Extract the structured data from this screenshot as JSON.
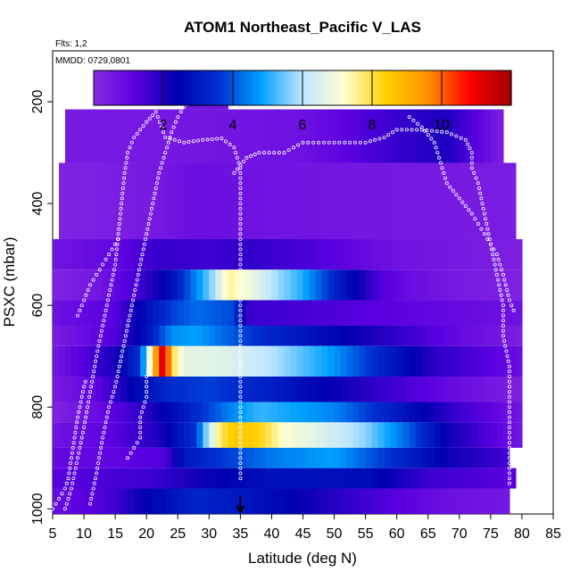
{
  "chart_data": {
    "type": "heatmap",
    "title": "ATOM1 Northeast_Pacific V_LAS",
    "flights_label": "Flts: 1,2",
    "date_label": "MMDD: 0729,0801",
    "xlabel": "Latitude (deg N)",
    "ylabel": "PSXC (mbar)",
    "xlim": [
      5,
      85
    ],
    "ylim": [
      1010,
      100
    ],
    "y_reversed": true,
    "x_ticks": [
      5,
      10,
      15,
      20,
      25,
      30,
      35,
      40,
      45,
      50,
      55,
      60,
      65,
      70,
      75,
      80,
      85
    ],
    "y_ticks": [
      200,
      400,
      600,
      800,
      1000
    ],
    "colorbar": {
      "range": [
        0,
        12
      ],
      "ticks": [
        2,
        4,
        6,
        8,
        10
      ],
      "colors": [
        "#8a2be2",
        "#5a00e0",
        "#0000b0",
        "#0030d0",
        "#00a0ff",
        "#bfe6ff",
        "#ffffd0",
        "#ffd000",
        "#ff9000",
        "#ff0000",
        "#a00000"
      ]
    },
    "marker_latitude": 35,
    "layers": [
      {
        "p_top": 165,
        "p_bot": 215,
        "x_start": 26,
        "x_end": 33,
        "anchors": [
          [
            26,
            0.5
          ],
          [
            33,
            0.5
          ]
        ]
      },
      {
        "p_top": 215,
        "p_bot": 320,
        "x_start": 7,
        "x_end": 77,
        "anchors": [
          [
            7,
            0.4
          ],
          [
            20,
            0.5
          ],
          [
            30,
            0.6
          ],
          [
            45,
            0.8
          ],
          [
            60,
            1.8
          ],
          [
            68,
            2.2
          ],
          [
            72,
            1.5
          ],
          [
            77,
            0.5
          ]
        ]
      },
      {
        "p_top": 320,
        "p_bot": 470,
        "x_start": 6,
        "x_end": 79,
        "anchors": [
          [
            6,
            0.4
          ],
          [
            20,
            0.6
          ],
          [
            28,
            0.9
          ],
          [
            40,
            0.7
          ],
          [
            60,
            0.5
          ],
          [
            79,
            0.3
          ]
        ]
      },
      {
        "p_top": 470,
        "p_bot": 530,
        "x_start": 5,
        "x_end": 80,
        "anchors": [
          [
            5,
            0.4
          ],
          [
            15,
            0.8
          ],
          [
            22,
            1.5
          ],
          [
            30,
            1.4
          ],
          [
            36,
            1.6
          ],
          [
            45,
            1.3
          ],
          [
            60,
            0.6
          ],
          [
            80,
            0.3
          ]
        ]
      },
      {
        "p_top": 530,
        "p_bot": 590,
        "x_start": 5,
        "x_end": 80,
        "anchors": [
          [
            5,
            0.5
          ],
          [
            12,
            0.8
          ],
          [
            20,
            2.0
          ],
          [
            24,
            3.0
          ],
          [
            28,
            4.8
          ],
          [
            31,
            6.2
          ],
          [
            33,
            7.8
          ],
          [
            37,
            7.0
          ],
          [
            41,
            6.0
          ],
          [
            45,
            5.2
          ],
          [
            50,
            3.5
          ],
          [
            57,
            1.6
          ],
          [
            62,
            1.0
          ],
          [
            70,
            0.6
          ],
          [
            80,
            0.4
          ]
        ]
      },
      {
        "p_top": 590,
        "p_bot": 640,
        "x_start": 5,
        "x_end": 80,
        "anchors": [
          [
            5,
            0.5
          ],
          [
            15,
            1.0
          ],
          [
            20,
            2.5
          ],
          [
            24,
            3.5
          ],
          [
            28,
            4.0
          ],
          [
            34,
            3.6
          ],
          [
            36,
            1.4
          ],
          [
            50,
            1.1
          ],
          [
            65,
            0.8
          ],
          [
            80,
            0.5
          ]
        ]
      },
      {
        "p_top": 640,
        "p_bot": 680,
        "x_start": 5,
        "x_end": 80,
        "anchors": [
          [
            5,
            0.5
          ],
          [
            15,
            1.5
          ],
          [
            20,
            3.0
          ],
          [
            24,
            4.8
          ],
          [
            28,
            5.0
          ],
          [
            34,
            4.2
          ],
          [
            40,
            3.5
          ],
          [
            50,
            2.8
          ],
          [
            60,
            2.0
          ],
          [
            70,
            1.2
          ],
          [
            80,
            0.6
          ]
        ]
      },
      {
        "p_top": 680,
        "p_bot": 740,
        "x_start": 5,
        "x_end": 80,
        "anchors": [
          [
            5,
            0.5
          ],
          [
            15,
            2.0
          ],
          [
            19,
            3.5
          ],
          [
            21,
            8.0
          ],
          [
            22,
            10.5
          ],
          [
            23,
            11.5
          ],
          [
            24,
            8.0
          ],
          [
            26,
            6.6
          ],
          [
            33,
            6.4
          ],
          [
            40,
            5.8
          ],
          [
            50,
            4.5
          ],
          [
            58,
            3.0
          ],
          [
            66,
            1.6
          ],
          [
            80,
            0.6
          ]
        ]
      },
      {
        "p_top": 740,
        "p_bot": 790,
        "x_start": 5,
        "x_end": 80,
        "anchors": [
          [
            5,
            0.4
          ],
          [
            12,
            1.0
          ],
          [
            18,
            2.5
          ],
          [
            24,
            3.5
          ],
          [
            30,
            3.8
          ],
          [
            40,
            3.2
          ],
          [
            55,
            2.0
          ],
          [
            70,
            1.0
          ],
          [
            80,
            0.5
          ]
        ]
      },
      {
        "p_top": 790,
        "p_bot": 830,
        "x_start": 5,
        "x_end": 80,
        "anchors": [
          [
            5,
            0.4
          ],
          [
            12,
            1.0
          ],
          [
            20,
            2.0
          ],
          [
            28,
            3.5
          ],
          [
            33,
            4.5
          ],
          [
            38,
            5.2
          ],
          [
            50,
            4.5
          ],
          [
            60,
            3.0
          ],
          [
            70,
            1.5
          ],
          [
            80,
            0.5
          ]
        ]
      },
      {
        "p_top": 830,
        "p_bot": 880,
        "x_start": 5,
        "x_end": 80,
        "anchors": [
          [
            5,
            0.4
          ],
          [
            15,
            1.0
          ],
          [
            22,
            1.8
          ],
          [
            28,
            3.5
          ],
          [
            30,
            6.0
          ],
          [
            32,
            7.8
          ],
          [
            34,
            8.4
          ],
          [
            38,
            8.2
          ],
          [
            42,
            7.0
          ],
          [
            48,
            6.4
          ],
          [
            55,
            5.6
          ],
          [
            62,
            4.0
          ],
          [
            68,
            2.2
          ],
          [
            80,
            0.6
          ]
        ]
      },
      {
        "p_top": 880,
        "p_bot": 920,
        "x_start": 5,
        "x_end": 78,
        "anchors": [
          [
            5,
            1.2
          ],
          [
            15,
            1.3
          ],
          [
            23,
            1.6
          ],
          [
            26,
            3.2
          ],
          [
            30,
            3.7
          ],
          [
            40,
            4.6
          ],
          [
            50,
            5.0
          ],
          [
            60,
            3.6
          ],
          [
            68,
            2.4
          ],
          [
            78,
            1.6
          ]
        ]
      },
      {
        "p_top": 920,
        "p_bot": 960,
        "x_start": 5,
        "x_end": 79,
        "anchors": [
          [
            5,
            1.0
          ],
          [
            20,
            1.3
          ],
          [
            28,
            1.9
          ],
          [
            40,
            2.6
          ],
          [
            55,
            2.5
          ],
          [
            65,
            1.4
          ],
          [
            79,
            1.0
          ]
        ]
      },
      {
        "p_top": 960,
        "p_bot": 1010,
        "x_start": 5,
        "x_end": 78,
        "anchors": [
          [
            5,
            1.0
          ],
          [
            14,
            1.6
          ],
          [
            20,
            2.6
          ],
          [
            28,
            3.5
          ],
          [
            36,
            3.2
          ],
          [
            48,
            2.3
          ],
          [
            58,
            1.6
          ],
          [
            68,
            1.0
          ],
          [
            78,
            0.8
          ]
        ]
      }
    ],
    "flight_tracks": [
      [
        [
          7,
          1000
        ],
        [
          8,
          960
        ],
        [
          9,
          900
        ],
        [
          10,
          840
        ],
        [
          11,
          770
        ],
        [
          12,
          700
        ],
        [
          13,
          640
        ],
        [
          14,
          580
        ],
        [
          15,
          520
        ],
        [
          15.5,
          460
        ],
        [
          16,
          400
        ],
        [
          16.5,
          340
        ],
        [
          17,
          300
        ],
        [
          18,
          270
        ],
        [
          20,
          240
        ],
        [
          21.5,
          220
        ],
        [
          23,
          270
        ],
        [
          26,
          280
        ],
        [
          29,
          275
        ],
        [
          32,
          272
        ],
        [
          34,
          290
        ],
        [
          35,
          330
        ],
        [
          35,
          400
        ],
        [
          35,
          480
        ],
        [
          35,
          560
        ],
        [
          35,
          640
        ],
        [
          35,
          720
        ],
        [
          35,
          800
        ],
        [
          35,
          880
        ],
        [
          35,
          950
        ]
      ],
      [
        [
          11,
          990
        ],
        [
          12,
          930
        ],
        [
          13,
          860
        ],
        [
          14,
          800
        ],
        [
          15,
          760
        ],
        [
          16,
          700
        ],
        [
          17,
          640
        ],
        [
          18,
          580
        ],
        [
          19,
          520
        ],
        [
          20,
          460
        ],
        [
          21,
          400
        ],
        [
          22,
          340
        ],
        [
          23,
          300
        ],
        [
          24,
          260
        ],
        [
          25,
          230
        ],
        [
          26,
          210
        ],
        [
          27,
          200
        ],
        [
          30,
          200
        ],
        [
          33,
          200
        ]
      ],
      [
        [
          34,
          340
        ],
        [
          36,
          310
        ],
        [
          38,
          300
        ],
        [
          42,
          300
        ],
        [
          45,
          280
        ],
        [
          50,
          280
        ],
        [
          55,
          280
        ],
        [
          58,
          270
        ],
        [
          60,
          255
        ],
        [
          64,
          255
        ],
        [
          68,
          260
        ],
        [
          71,
          275
        ],
        [
          72,
          300
        ],
        [
          72,
          330
        ],
        [
          73,
          360
        ],
        [
          74,
          420
        ],
        [
          75,
          480
        ],
        [
          76,
          540
        ],
        [
          77,
          600
        ],
        [
          77,
          660
        ],
        [
          78,
          720
        ],
        [
          78,
          800
        ],
        [
          78,
          880
        ],
        [
          78,
          960
        ]
      ],
      [
        [
          62,
          230
        ],
        [
          64,
          250
        ],
        [
          66,
          280
        ],
        [
          67,
          320
        ],
        [
          68,
          360
        ],
        [
          70,
          390
        ],
        [
          72,
          420
        ],
        [
          74,
          460
        ],
        [
          76,
          500
        ],
        [
          77,
          540
        ],
        [
          78,
          590
        ],
        [
          79,
          620
        ]
      ],
      [
        [
          9,
          620
        ],
        [
          10,
          590
        ],
        [
          11,
          560
        ],
        [
          12,
          540
        ],
        [
          13,
          520
        ],
        [
          14,
          500
        ],
        [
          15,
          480
        ],
        [
          16,
          460
        ]
      ],
      [
        [
          17,
          900
        ],
        [
          18,
          880
        ],
        [
          19,
          860
        ],
        [
          19,
          820
        ],
        [
          20,
          780
        ],
        [
          20,
          740
        ],
        [
          21,
          700
        ]
      ],
      [
        [
          5,
          1000
        ],
        [
          6,
          980
        ],
        [
          7,
          960
        ],
        [
          7.5,
          940
        ],
        [
          8,
          900
        ],
        [
          8.5,
          860
        ],
        [
          9,
          820
        ],
        [
          9.5,
          790
        ],
        [
          10,
          760
        ],
        [
          10.5,
          740
        ]
      ]
    ]
  }
}
